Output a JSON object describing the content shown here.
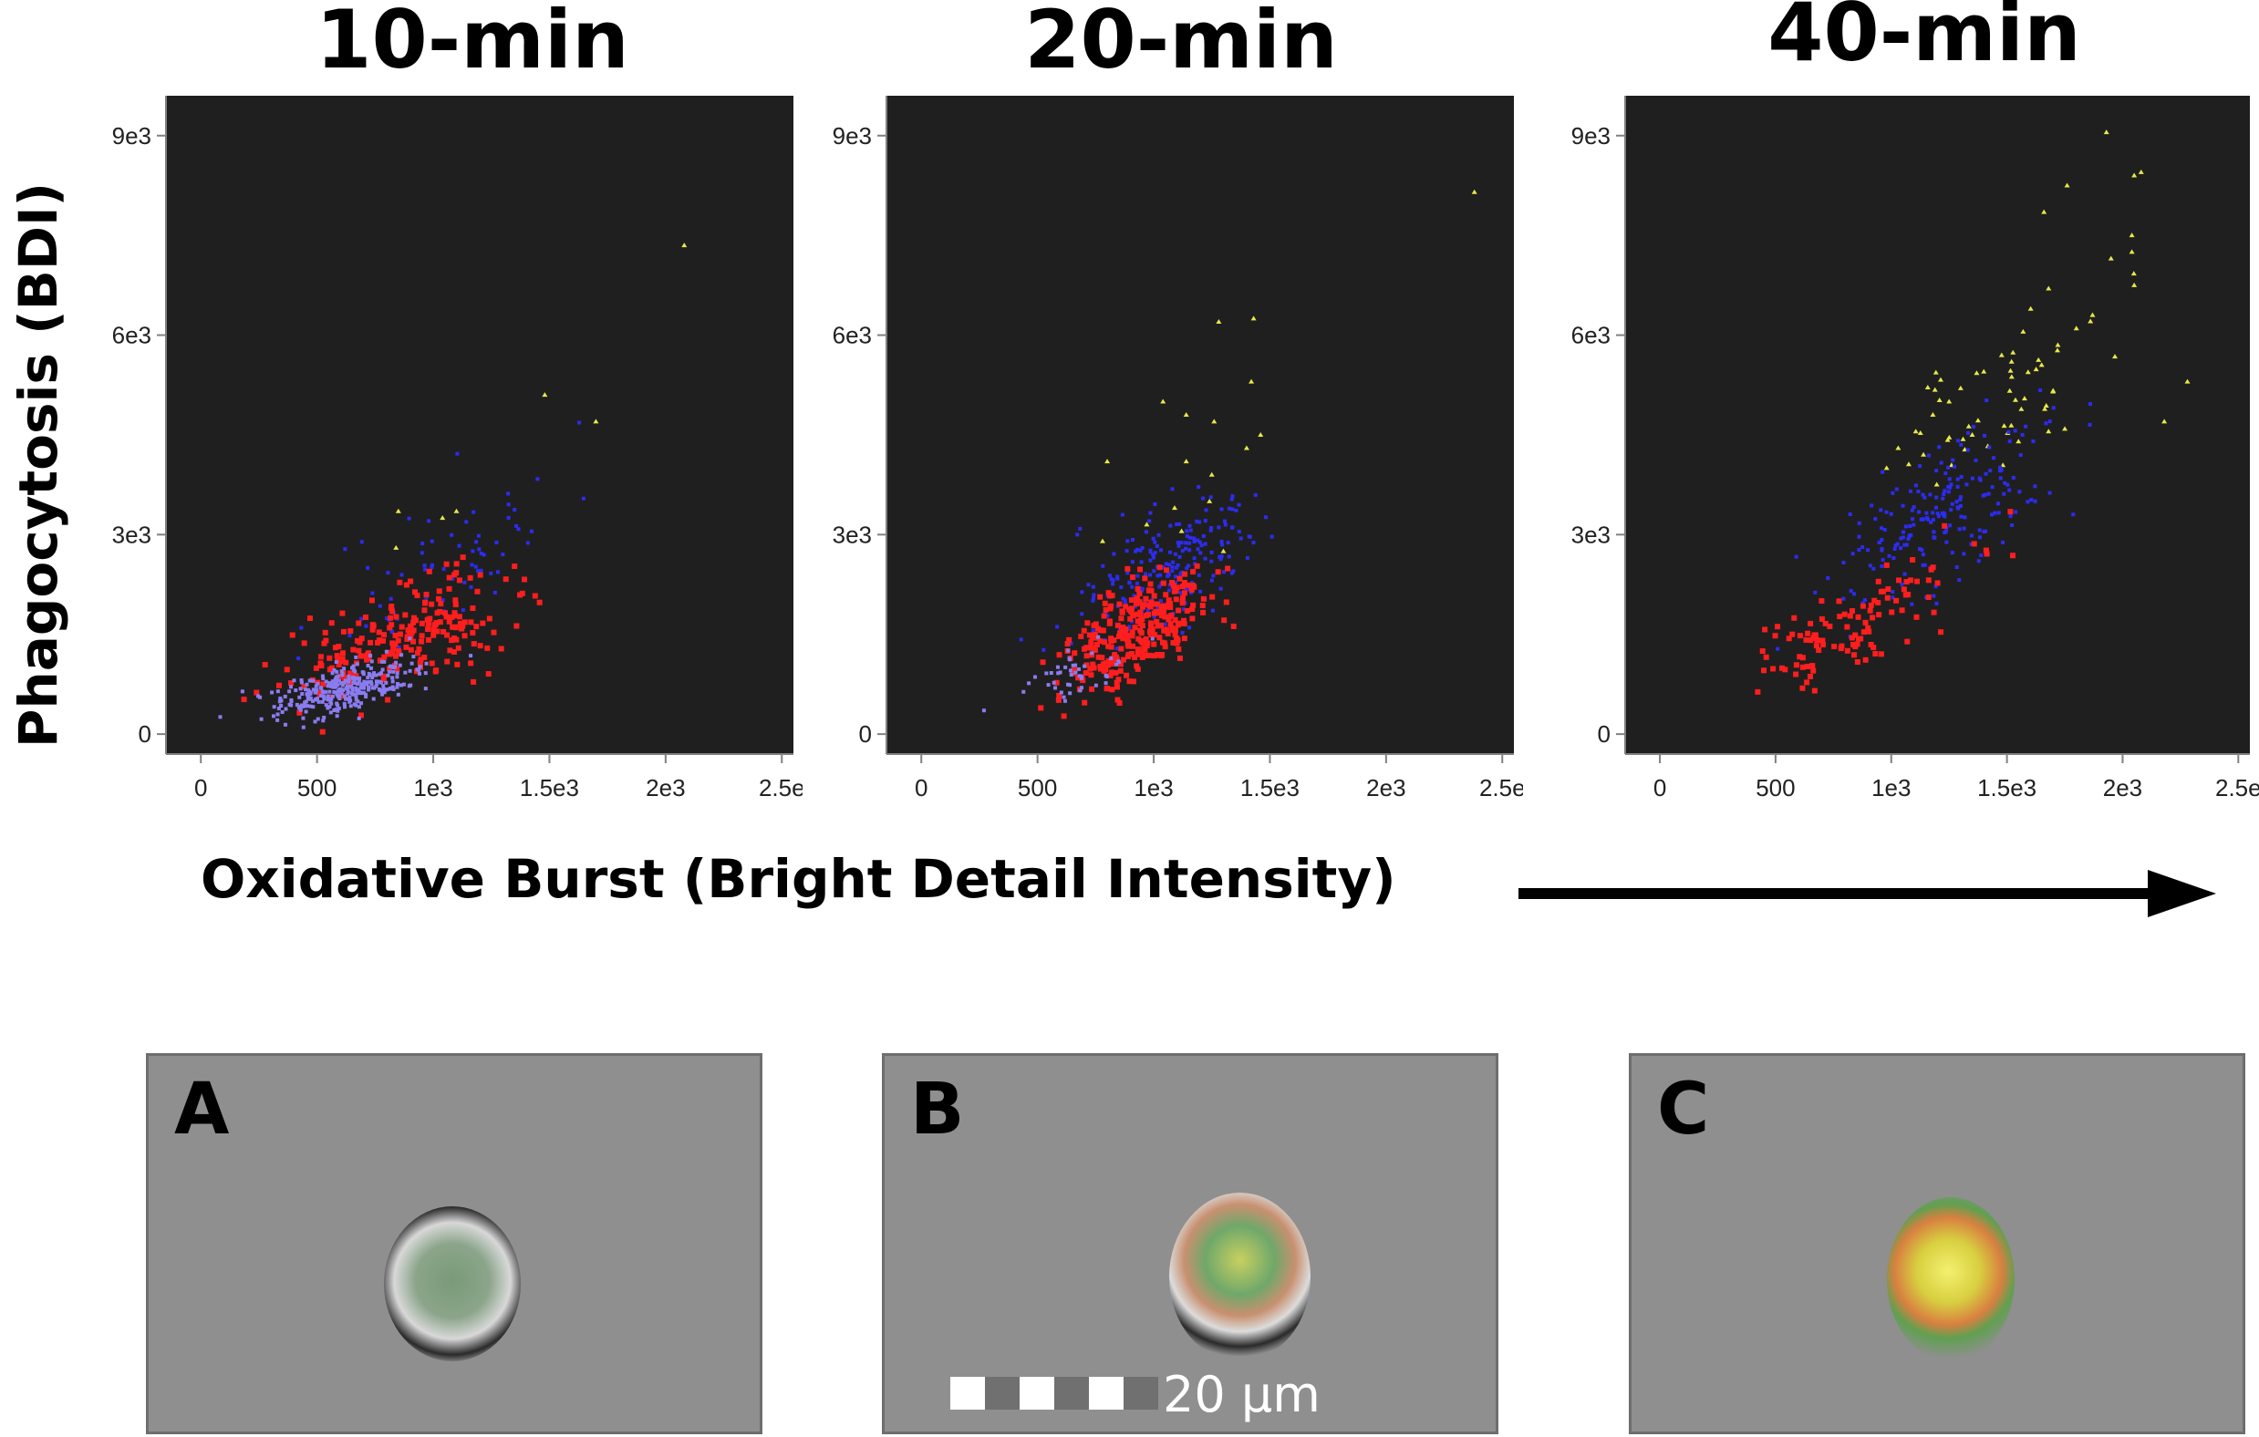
{
  "panels": [
    {
      "title": "10-min"
    },
    {
      "title": "20-min"
    },
    {
      "title": "40-min"
    }
  ],
  "ylabel": "Phagocytosis (BDI)",
  "xlabel": "Oxidative Burst (Bright Detail Intensity)",
  "colors": {
    "plot_bg": "#1f1f1f",
    "yellow": "#e8e84a",
    "blue": "#2c2cf0",
    "red": "#ff1e1e",
    "lavender": "#8a7cf0",
    "axis": "#808080",
    "tick_text": "#222222"
  },
  "chart_data": [
    {
      "type": "scatter",
      "title": "10-min",
      "xlim": [
        -150,
        2550
      ],
      "ylim": [
        -300,
        9600
      ],
      "x_ticks": [
        "0",
        "500",
        "1e3",
        "1.5e3",
        "2e3",
        "2.5e"
      ],
      "x_tick_values": [
        0,
        500,
        1000,
        1500,
        2000,
        2500
      ],
      "y_ticks": [
        "0",
        "3e3",
        "6e3",
        "9e3"
      ],
      "y_tick_values": [
        0,
        3000,
        6000,
        9000
      ],
      "series": [
        {
          "color": "yellow",
          "points": [
            [
              2080,
              7350
            ],
            [
              1480,
              5100
            ],
            [
              1700,
              4700
            ],
            [
              850,
              3350
            ],
            [
              1040,
              3250
            ],
            [
              1100,
              3350
            ],
            [
              840,
              2800
            ]
          ]
        },
        {
          "color": "blue",
          "dist": {
            "n": 70,
            "mx": 1050,
            "sx": 250,
            "my": 2600,
            "sy": 700,
            "seed": 11
          }
        },
        {
          "color": "red",
          "dist": {
            "n": 230,
            "mx": 870,
            "sx": 230,
            "my": 1450,
            "sy": 450,
            "seed": 22
          }
        },
        {
          "color": "lavender",
          "dist": {
            "n": 320,
            "mx": 620,
            "sx": 150,
            "my": 680,
            "sy": 200,
            "seed": 33
          }
        }
      ]
    },
    {
      "type": "scatter",
      "title": "20-min",
      "xlim": [
        -150,
        2550
      ],
      "ylim": [
        -300,
        9600
      ],
      "x_ticks": [
        "0",
        "500",
        "1e3",
        "1.5e3",
        "2e3",
        "2.5e"
      ],
      "x_tick_values": [
        0,
        500,
        1000,
        1500,
        2000,
        2500
      ],
      "y_ticks": [
        "0",
        "3e3",
        "6e3",
        "9e3"
      ],
      "y_tick_values": [
        0,
        3000,
        6000,
        9000
      ],
      "series": [
        {
          "color": "yellow",
          "points": [
            [
              2380,
              8150
            ],
            [
              1280,
              6200
            ],
            [
              1430,
              6250
            ],
            [
              1420,
              5300
            ],
            [
              1040,
              5000
            ],
            [
              1140,
              4800
            ],
            [
              1260,
              4700
            ],
            [
              1460,
              4500
            ],
            [
              1400,
              4300
            ],
            [
              1140,
              4100
            ],
            [
              800,
              4100
            ],
            [
              1250,
              3900
            ],
            [
              1240,
              3500
            ],
            [
              1090,
              3400
            ],
            [
              780,
              2900
            ],
            [
              970,
              3150
            ],
            [
              1120,
              3050
            ],
            [
              1300,
              2750
            ]
          ]
        },
        {
          "color": "blue",
          "dist": {
            "n": 220,
            "mx": 1060,
            "sx": 210,
            "my": 2500,
            "sy": 600,
            "seed": 44
          }
        },
        {
          "color": "red",
          "dist": {
            "n": 300,
            "mx": 920,
            "sx": 160,
            "my": 1550,
            "sy": 430,
            "seed": 55
          }
        },
        {
          "color": "lavender",
          "dist": {
            "n": 45,
            "mx": 650,
            "sx": 120,
            "my": 850,
            "sy": 230,
            "seed": 66
          }
        }
      ]
    },
    {
      "type": "scatter",
      "title": "40-min",
      "xlim": [
        -150,
        2550
      ],
      "ylim": [
        -300,
        9600
      ],
      "x_ticks": [
        "0",
        "500",
        "1e3",
        "1.5e3",
        "2e3",
        "2.5e"
      ],
      "x_tick_values": [
        0,
        500,
        1000,
        1500,
        2000,
        2500
      ],
      "y_ticks": [
        "0",
        "3e3",
        "6e3",
        "9e3"
      ],
      "y_tick_values": [
        0,
        3000,
        6000,
        9000
      ],
      "series": [
        {
          "color": "yellow",
          "points": [
            [
              1930,
              9050
            ],
            [
              1760,
              8250
            ],
            [
              2080,
              8450
            ],
            [
              2050,
              8400
            ],
            [
              1660,
              7850
            ],
            [
              2040,
              7500
            ],
            [
              2040,
              7250
            ],
            [
              1950,
              7150
            ],
            [
              2050,
              6750
            ],
            [
              1680,
              6700
            ],
            [
              1870,
              6300
            ],
            [
              1800,
              6100
            ],
            [
              1570,
              6050
            ],
            [
              1720,
              5850
            ],
            [
              1650,
              5550
            ],
            [
              2280,
              5300
            ],
            [
              2180,
              4700
            ],
            [
              1520,
              5600
            ],
            [
              1400,
              5450
            ],
            [
              1300,
              5200
            ],
            [
              1250,
              5000
            ],
            [
              1180,
              4800
            ],
            [
              1350,
              4500
            ],
            [
              1550,
              4400
            ],
            [
              1030,
              4300
            ],
            [
              980,
              4000
            ]
          ]
        },
        {
          "color": "yellow",
          "dist": {
            "n": 45,
            "mx": 1450,
            "sx": 250,
            "my": 5000,
            "sy": 700,
            "seed": 77
          }
        },
        {
          "color": "blue",
          "dist": {
            "n": 210,
            "mx": 1230,
            "sx": 220,
            "my": 3300,
            "sy": 650,
            "seed": 88
          }
        },
        {
          "color": "red",
          "dist": {
            "n": 110,
            "mx": 850,
            "sx": 230,
            "my": 1650,
            "sy": 450,
            "seed": 99
          }
        }
      ]
    }
  ],
  "micro_panels": [
    {
      "letter": "A"
    },
    {
      "letter": "B",
      "scale_label": "20 µm"
    },
    {
      "letter": "C"
    }
  ]
}
